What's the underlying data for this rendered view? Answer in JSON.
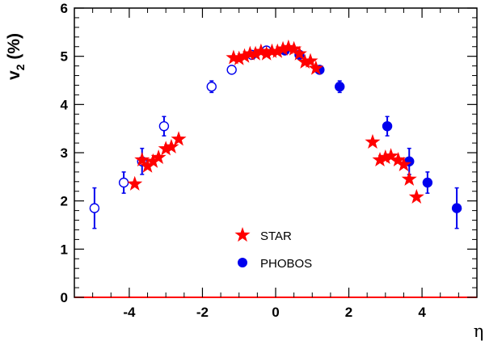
{
  "chart_data": {
    "type": "scatter",
    "title": "",
    "xlabel": "η",
    "ylabel": {
      "main": "v",
      "sub": "2",
      "unit": " (%)"
    },
    "xlim": [
      -5.5,
      5.5
    ],
    "ylim": [
      0,
      6
    ],
    "x_ticks": [
      -4,
      -2,
      0,
      2,
      4
    ],
    "x_tick_labels": [
      "-4",
      "-2",
      "0",
      "2",
      "4"
    ],
    "y_ticks": [
      0,
      1,
      2,
      3,
      4,
      5,
      6
    ],
    "y_tick_labels": [
      "0",
      "1",
      "2",
      "3",
      "4",
      "5",
      "6"
    ],
    "grid": false,
    "legend_position": "center-bottom",
    "colors": {
      "star": "#ff0000",
      "phobos": "#0000ee",
      "zero_line": "#ff0000"
    },
    "series": [
      {
        "name": "STAR",
        "marker": "star",
        "points": [
          {
            "x": -3.85,
            "y": 2.35
          },
          {
            "x": -3.65,
            "y": 2.85
          },
          {
            "x": -3.5,
            "y": 2.72
          },
          {
            "x": -3.35,
            "y": 2.82
          },
          {
            "x": -3.2,
            "y": 2.9
          },
          {
            "x": -3.0,
            "y": 3.08
          },
          {
            "x": -2.85,
            "y": 3.12
          },
          {
            "x": -2.65,
            "y": 3.28
          },
          {
            "x": -1.15,
            "y": 4.97
          },
          {
            "x": -1.0,
            "y": 4.95
          },
          {
            "x": -0.85,
            "y": 5.0
          },
          {
            "x": -0.7,
            "y": 5.05
          },
          {
            "x": -0.55,
            "y": 5.05
          },
          {
            "x": -0.4,
            "y": 5.1
          },
          {
            "x": -0.25,
            "y": 5.05
          },
          {
            "x": -0.1,
            "y": 5.1
          },
          {
            "x": 0.05,
            "y": 5.1
          },
          {
            "x": 0.2,
            "y": 5.15
          },
          {
            "x": 0.35,
            "y": 5.18
          },
          {
            "x": 0.5,
            "y": 5.15
          },
          {
            "x": 0.65,
            "y": 5.05
          },
          {
            "x": 0.8,
            "y": 4.88
          },
          {
            "x": 0.95,
            "y": 4.9
          },
          {
            "x": 1.1,
            "y": 4.75
          },
          {
            "x": 2.65,
            "y": 3.22
          },
          {
            "x": 2.85,
            "y": 2.85
          },
          {
            "x": 3.0,
            "y": 2.9
          },
          {
            "x": 3.15,
            "y": 2.93
          },
          {
            "x": 3.35,
            "y": 2.85
          },
          {
            "x": 3.5,
            "y": 2.75
          },
          {
            "x": 3.65,
            "y": 2.45
          },
          {
            "x": 3.85,
            "y": 2.08
          }
        ]
      },
      {
        "name": "PHOBOS",
        "marker": "circle",
        "points": [
          {
            "x": -4.95,
            "y": 1.85,
            "err": 0.42,
            "filled": false
          },
          {
            "x": -4.15,
            "y": 2.38,
            "err": 0.22,
            "filled": false
          },
          {
            "x": -3.65,
            "y": 2.82,
            "err": 0.27,
            "filled": false
          },
          {
            "x": -3.05,
            "y": 3.55,
            "err": 0.2,
            "filled": false
          },
          {
            "x": -1.75,
            "y": 4.37,
            "err": 0.12,
            "filled": false
          },
          {
            "x": -1.2,
            "y": 4.72,
            "err": 0.07,
            "filled": false
          },
          {
            "x": -0.65,
            "y": 5.03,
            "err": 0.05,
            "filled": false
          },
          {
            "x": -0.25,
            "y": 5.12,
            "err": 0.04,
            "filled": false
          },
          {
            "x": 0.25,
            "y": 5.12,
            "err": 0.04,
            "filled": true
          },
          {
            "x": 0.65,
            "y": 5.03,
            "err": 0.05,
            "filled": true
          },
          {
            "x": 1.2,
            "y": 4.72,
            "err": 0.07,
            "filled": true
          },
          {
            "x": 1.75,
            "y": 4.37,
            "err": 0.12,
            "filled": true
          },
          {
            "x": 3.05,
            "y": 3.55,
            "err": 0.2,
            "filled": true
          },
          {
            "x": 3.65,
            "y": 2.82,
            "err": 0.27,
            "filled": true
          },
          {
            "x": 4.15,
            "y": 2.38,
            "err": 0.22,
            "filled": true
          },
          {
            "x": 4.95,
            "y": 1.85,
            "err": 0.42,
            "filled": true
          }
        ]
      }
    ]
  }
}
